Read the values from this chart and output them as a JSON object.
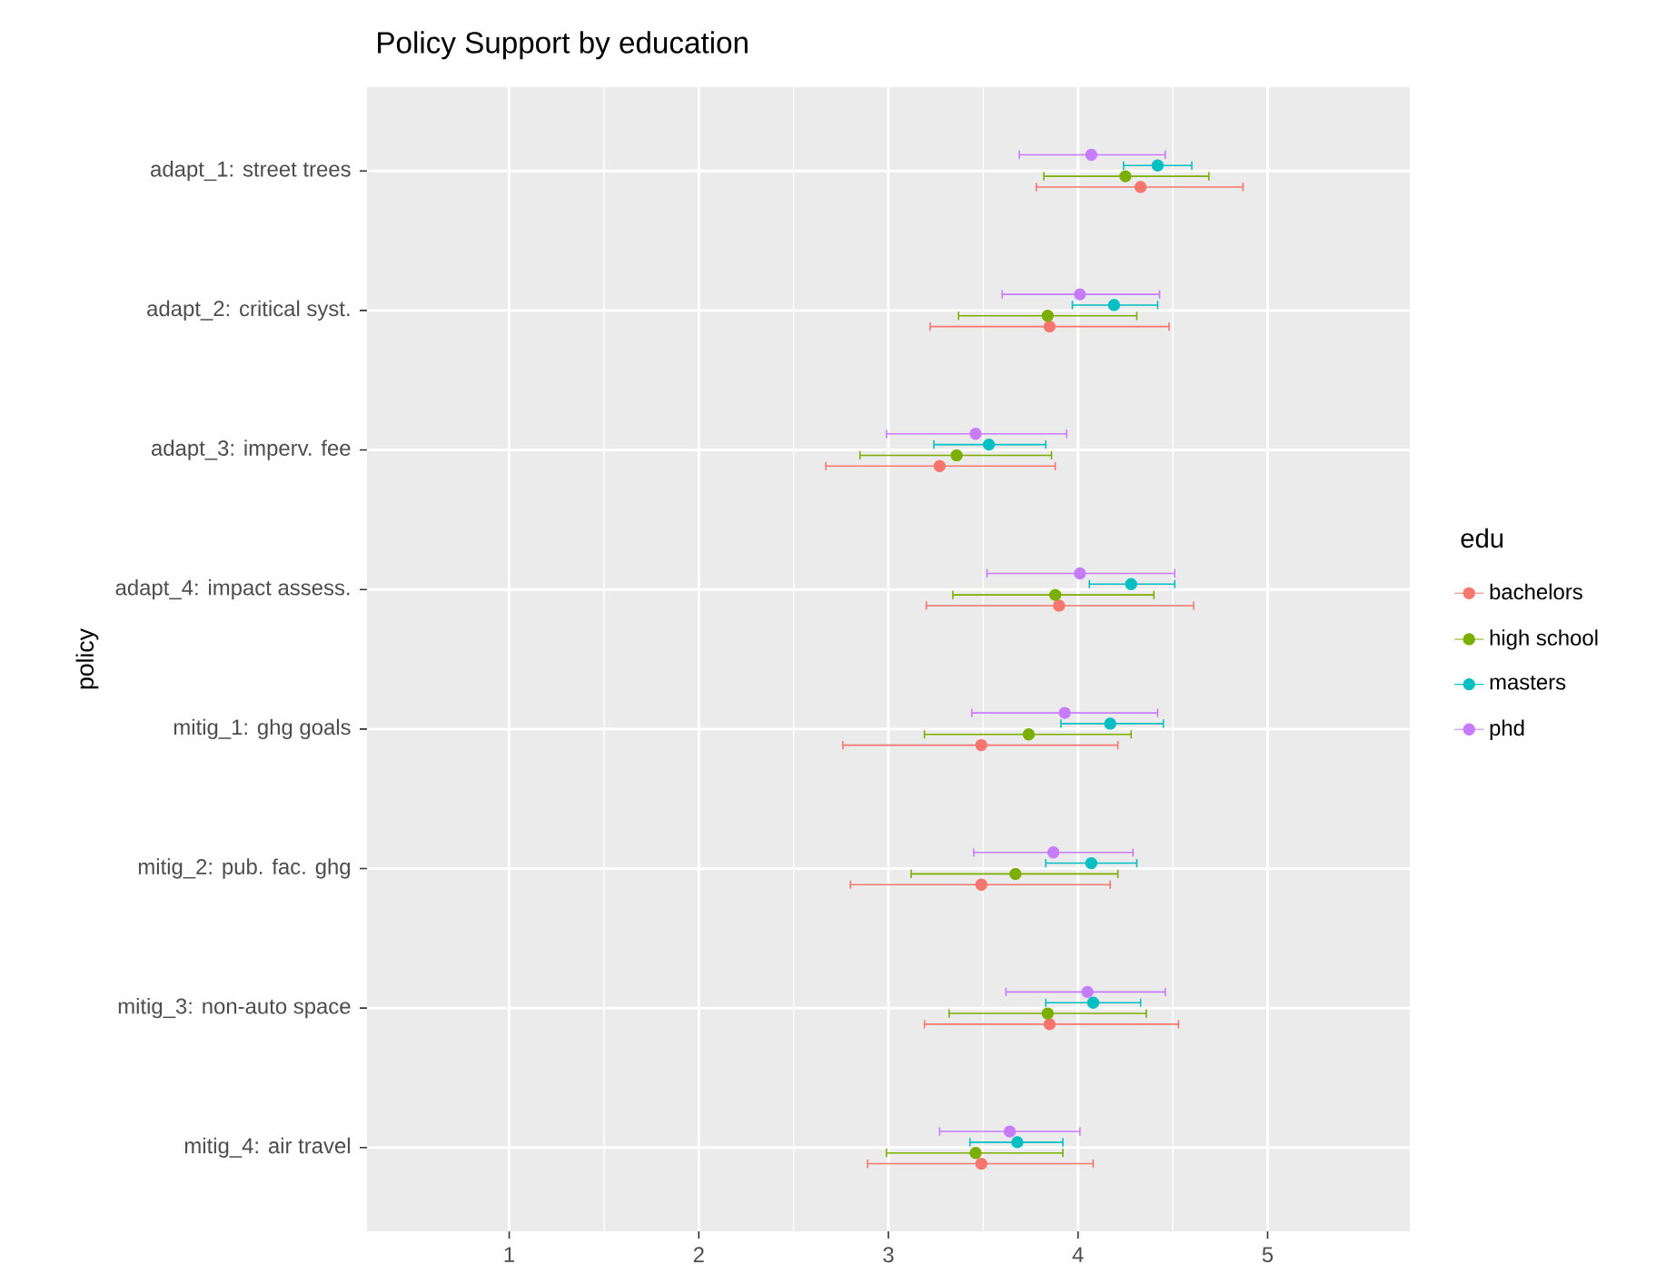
{
  "chart_data": {
    "type": "scatter",
    "orientation": "horizontal",
    "title": "Policy Support by education",
    "ylabel": "policy",
    "legend_title": "edu",
    "legend": "right",
    "grid": true,
    "marker": "circle",
    "categories": [
      "adapt_1: street trees",
      "adapt_2: critical syst.",
      "adapt_3: imperv. fee",
      "adapt_4: impact assess.",
      "mitig_1: ghg goals",
      "mitig_2: pub. fac. ghg",
      "mitig_3: non-auto space",
      "mitig_4: air travel"
    ],
    "xlim": [
      0.25,
      5.75
    ],
    "xticks": [
      1,
      2,
      3,
      4,
      5
    ],
    "series": [
      {
        "name": "bachelors",
        "color": "#F8766D",
        "values": [
          4.33,
          3.85,
          3.27,
          3.9,
          3.49,
          3.49,
          3.85,
          3.49
        ],
        "errors": [
          [
            3.78,
            4.87
          ],
          [
            3.22,
            4.48
          ],
          [
            2.67,
            3.88
          ],
          [
            3.2,
            4.61
          ],
          [
            2.76,
            4.21
          ],
          [
            2.8,
            4.17
          ],
          [
            3.19,
            4.53
          ],
          [
            2.89,
            4.08
          ]
        ]
      },
      {
        "name": "high school",
        "color": "#7CAE00",
        "values": [
          4.25,
          3.84,
          3.36,
          3.88,
          3.74,
          3.67,
          3.84,
          3.46
        ],
        "errors": [
          [
            3.82,
            4.69
          ],
          [
            3.37,
            4.31
          ],
          [
            2.85,
            3.86
          ],
          [
            3.34,
            4.4
          ],
          [
            3.19,
            4.28
          ],
          [
            3.12,
            4.21
          ],
          [
            3.32,
            4.36
          ],
          [
            2.99,
            3.92
          ]
        ]
      },
      {
        "name": "masters",
        "color": "#00BFC4",
        "values": [
          4.42,
          4.19,
          3.53,
          4.28,
          4.17,
          4.07,
          4.08,
          3.68
        ],
        "errors": [
          [
            4.24,
            4.6
          ],
          [
            3.97,
            4.42
          ],
          [
            3.24,
            3.83
          ],
          [
            4.06,
            4.51
          ],
          [
            3.91,
            4.45
          ],
          [
            3.83,
            4.31
          ],
          [
            3.83,
            4.33
          ],
          [
            3.43,
            3.92
          ]
        ]
      },
      {
        "name": "phd",
        "color": "#C77CFF",
        "values": [
          4.07,
          4.01,
          3.46,
          4.01,
          3.93,
          3.87,
          4.05,
          3.64
        ],
        "errors": [
          [
            3.69,
            4.46
          ],
          [
            3.6,
            4.43
          ],
          [
            2.99,
            3.94
          ],
          [
            3.52,
            4.51
          ],
          [
            3.44,
            4.42
          ],
          [
            3.45,
            4.29
          ],
          [
            3.62,
            4.46
          ],
          [
            3.27,
            4.01
          ]
        ]
      }
    ]
  }
}
